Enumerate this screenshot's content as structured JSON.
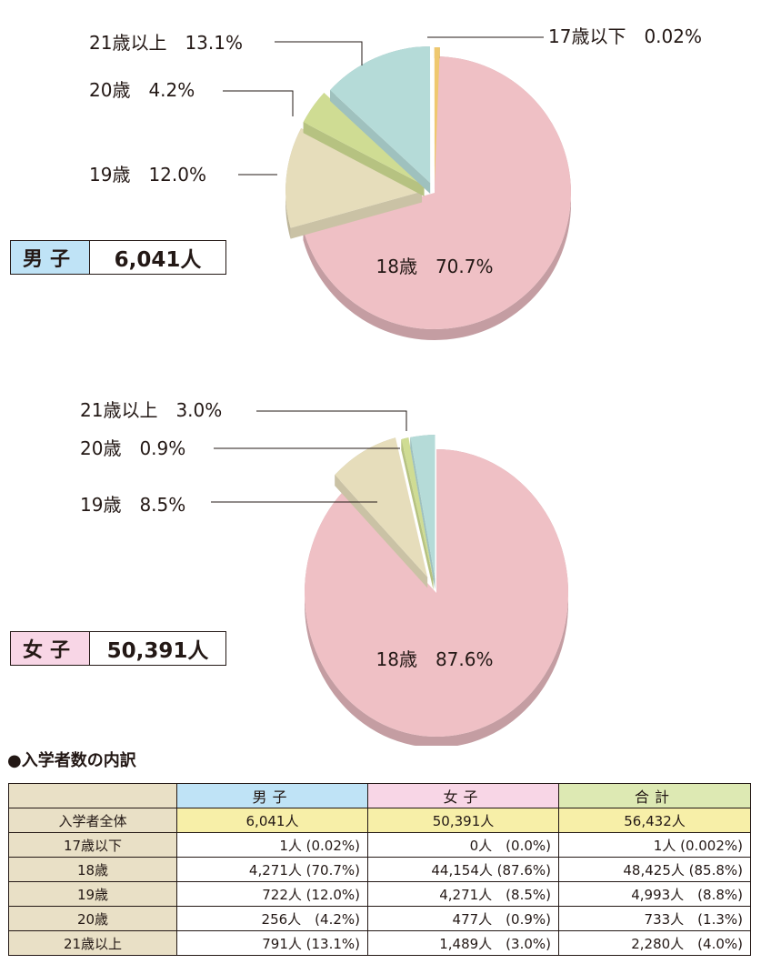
{
  "chart_data": [
    {
      "type": "pie",
      "title": "",
      "group": "男子",
      "total_label": "6,041人",
      "slices": [
        {
          "label": "18歳",
          "percent": "70.7%",
          "value": 70.7,
          "color": "#efc0c5"
        },
        {
          "label": "19歳",
          "percent": "12.0%",
          "value": 12.0,
          "color": "#e6ddbb"
        },
        {
          "label": "20歳",
          "percent": "4.2%",
          "value": 4.2,
          "color": "#cfdc93"
        },
        {
          "label": "21歳以上",
          "percent": "13.1%",
          "value": 13.1,
          "color": "#b5dbd8"
        },
        {
          "label": "17歳以下",
          "percent": "0.02%",
          "value": 0.02,
          "color": "#efc86e"
        }
      ]
    },
    {
      "type": "pie",
      "title": "",
      "group": "女子",
      "total_label": "50,391人",
      "slices": [
        {
          "label": "18歳",
          "percent": "87.6%",
          "value": 87.6,
          "color": "#efc0c5"
        },
        {
          "label": "19歳",
          "percent": "8.5%",
          "value": 8.5,
          "color": "#e6ddbb"
        },
        {
          "label": "20歳",
          "percent": "0.9%",
          "value": 0.9,
          "color": "#cfdc93"
        },
        {
          "label": "21歳以上",
          "percent": "3.0%",
          "value": 3.0,
          "color": "#b5dbd8"
        }
      ]
    }
  ],
  "male_box": {
    "label": "男子",
    "value": "6,041人"
  },
  "female_box": {
    "label": "女子",
    "value": "50,391人"
  },
  "table": {
    "title": "●入学者数の内訳",
    "headers": [
      "男子",
      "女子",
      "合計"
    ],
    "rows": [
      {
        "label": "入学者全体",
        "cells": [
          "6,041人",
          "50,391人",
          "56,432人"
        ]
      },
      {
        "label": "17歳以下",
        "cells": [
          "1人 (0.02%)",
          "0人　(0.0%)",
          "1人 (0.002%)"
        ]
      },
      {
        "label": "18歳",
        "cells": [
          "4,271人 (70.7%)",
          "44,154人 (87.6%)",
          "48,425人 (85.8%)"
        ]
      },
      {
        "label": "19歳",
        "cells": [
          "722人 (12.0%)",
          "4,271人　(8.5%)",
          "4,993人　(8.8%)"
        ]
      },
      {
        "label": "20歳",
        "cells": [
          "256人　(4.2%)",
          "477人　(0.9%)",
          "733人　(1.3%)"
        ]
      },
      {
        "label": "21歳以上",
        "cells": [
          "791人 (13.1%)",
          "1,489人　(3.0%)",
          "2,280人　(4.0%)"
        ]
      }
    ]
  }
}
